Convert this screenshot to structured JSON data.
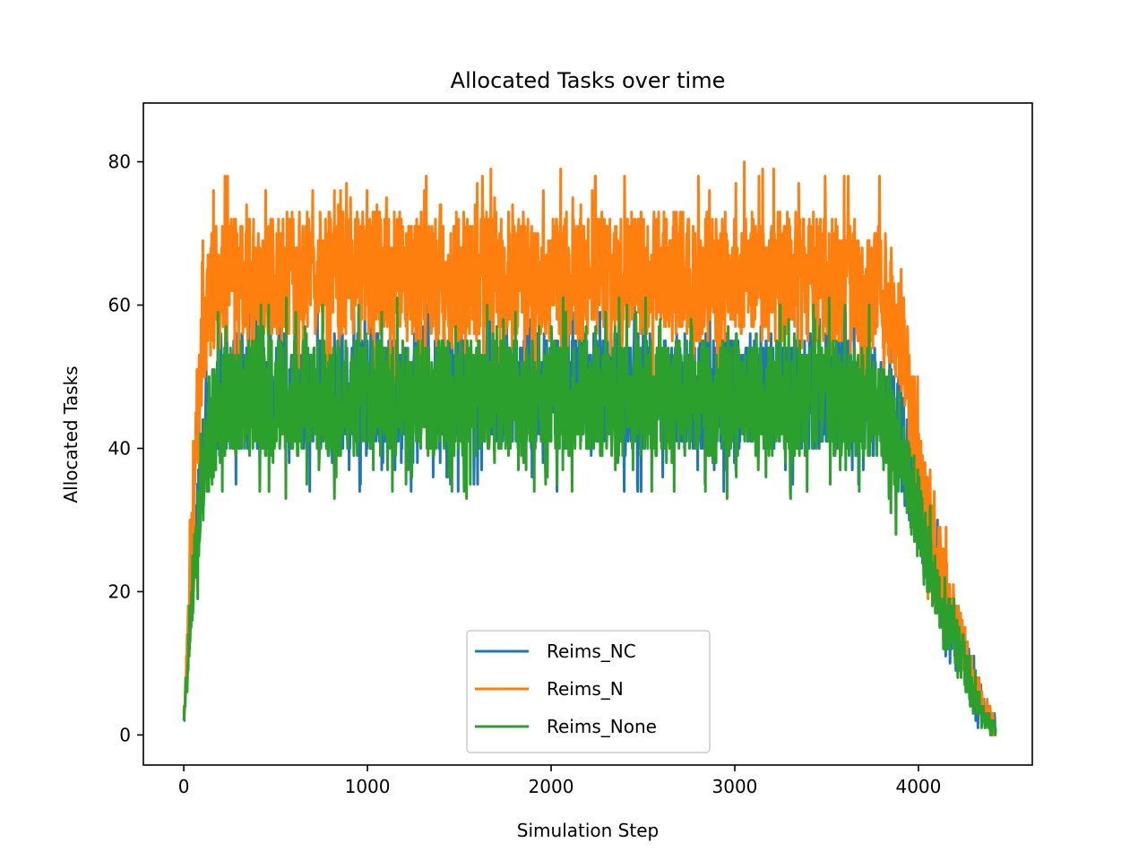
{
  "chart_data": {
    "type": "line",
    "title": "Allocated Tasks over time",
    "xlabel": "Simulation Step",
    "ylabel": "Allocated Tasks",
    "xlim": [
      -220,
      4620
    ],
    "ylim": [
      -4.2,
      88.2
    ],
    "xticks": [
      0,
      1000,
      2000,
      3000,
      4000
    ],
    "xtick_labels": [
      "0",
      "1000",
      "2000",
      "3000",
      "4000"
    ],
    "yticks": [
      0,
      20,
      40,
      60,
      80
    ],
    "ytick_labels": [
      "0",
      "20",
      "40",
      "60",
      "80"
    ],
    "grid": false,
    "legend_position": "lower center",
    "series": [
      {
        "name": "Reims_NC",
        "color": "#1f77b4",
        "x": [
          0,
          50,
          100,
          150,
          200,
          300,
          400,
          500,
          600,
          700,
          800,
          900,
          1000,
          1100,
          1200,
          1300,
          1400,
          1500,
          1600,
          1700,
          1800,
          1900,
          2000,
          2100,
          2200,
          2300,
          2400,
          2500,
          2600,
          2700,
          2800,
          2900,
          3000,
          3100,
          3200,
          3300,
          3400,
          3500,
          3600,
          3700,
          3800,
          3850,
          3900,
          3950,
          4000,
          4050,
          4100,
          4150,
          4200,
          4250,
          4300,
          4350,
          4400,
          4420
        ],
        "values": [
          2,
          22,
          37,
          44,
          47,
          48,
          48,
          48,
          48,
          48,
          48,
          48,
          48,
          48,
          48,
          48,
          48,
          48,
          48,
          48,
          48,
          48,
          48,
          48,
          48,
          48,
          48,
          48,
          48,
          48,
          48,
          48,
          48,
          48,
          48,
          48,
          48,
          48,
          48,
          47,
          46,
          45,
          42,
          37,
          31,
          27,
          22,
          18,
          14,
          11,
          7,
          4,
          2,
          1
        ],
        "amplitude": [
          1,
          5,
          7,
          8,
          8,
          8,
          8,
          8,
          8,
          8,
          8,
          8,
          8,
          8,
          8,
          8,
          8,
          8,
          8,
          8,
          8,
          8,
          8,
          8,
          8,
          8,
          8,
          8,
          8,
          8,
          8,
          8,
          8,
          8,
          8,
          8,
          8,
          8,
          8,
          8,
          8,
          8,
          8,
          7,
          6,
          5,
          5,
          4,
          4,
          4,
          3,
          2,
          1,
          1
        ]
      },
      {
        "name": "Reims_N",
        "color": "#ff7f0e",
        "x": [
          0,
          50,
          100,
          150,
          200,
          300,
          400,
          500,
          600,
          700,
          800,
          900,
          1000,
          1100,
          1200,
          1300,
          1400,
          1500,
          1600,
          1700,
          1800,
          1900,
          2000,
          2100,
          2200,
          2300,
          2400,
          2500,
          2600,
          2700,
          2800,
          2900,
          3000,
          3100,
          3200,
          3300,
          3400,
          3500,
          3600,
          3700,
          3800,
          3850,
          3900,
          3950,
          4000,
          4050,
          4100,
          4150,
          4200,
          4250,
          4300,
          4350,
          4400,
          4420
        ],
        "values": [
          2,
          30,
          55,
          62,
          63,
          64,
          64,
          64,
          64,
          64,
          64,
          64,
          64,
          64,
          64,
          64,
          64,
          64,
          64,
          64,
          64,
          64,
          64,
          64,
          64,
          64,
          64,
          64,
          64,
          64,
          64,
          64,
          64,
          64,
          64,
          64,
          64,
          64,
          64,
          63,
          62,
          60,
          57,
          48,
          38,
          30,
          25,
          20,
          16,
          12,
          8,
          4,
          2,
          1
        ],
        "amplitude": [
          1,
          7,
          8,
          9,
          9,
          9,
          9,
          9,
          9,
          9,
          9,
          9,
          9,
          9,
          9,
          9,
          9,
          9,
          9,
          9,
          9,
          9,
          9,
          9,
          9,
          9,
          9,
          9,
          9,
          9,
          9,
          9,
          9,
          9,
          9,
          9,
          9,
          9,
          9,
          9,
          9,
          9,
          9,
          8,
          7,
          6,
          5,
          5,
          4,
          4,
          3,
          2,
          1,
          1
        ]
      },
      {
        "name": "Reims_None",
        "color": "#2ca02c",
        "x": [
          0,
          50,
          100,
          150,
          200,
          300,
          400,
          500,
          600,
          700,
          800,
          900,
          1000,
          1100,
          1200,
          1300,
          1400,
          1500,
          1600,
          1700,
          1800,
          1900,
          2000,
          2100,
          2200,
          2300,
          2400,
          2500,
          2600,
          2700,
          2800,
          2900,
          3000,
          3100,
          3200,
          3300,
          3400,
          3500,
          3600,
          3700,
          3800,
          3850,
          3900,
          3950,
          4000,
          4050,
          4100,
          4150,
          4200,
          4250,
          4300,
          4350,
          4400,
          4420
        ],
        "values": [
          2,
          22,
          35,
          43,
          46,
          47,
          47,
          47,
          47,
          47,
          47,
          47,
          47,
          47,
          47,
          47,
          47,
          47,
          47,
          47,
          47,
          47,
          47,
          47,
          47,
          47,
          47,
          47,
          47,
          47,
          47,
          47,
          47,
          47,
          47,
          47,
          47,
          47,
          47,
          46,
          45,
          44,
          40,
          35,
          30,
          25,
          20,
          16,
          13,
          10,
          6,
          3,
          1,
          1
        ],
        "amplitude": [
          1,
          5,
          7,
          8,
          8,
          8,
          8,
          8,
          8,
          8,
          8,
          8,
          8,
          8,
          8,
          8,
          8,
          8,
          8,
          8,
          8,
          8,
          8,
          8,
          8,
          8,
          8,
          8,
          8,
          8,
          8,
          8,
          8,
          8,
          8,
          8,
          8,
          8,
          8,
          8,
          8,
          8,
          8,
          7,
          6,
          5,
          5,
          4,
          4,
          4,
          3,
          2,
          1,
          1
        ]
      }
    ]
  }
}
